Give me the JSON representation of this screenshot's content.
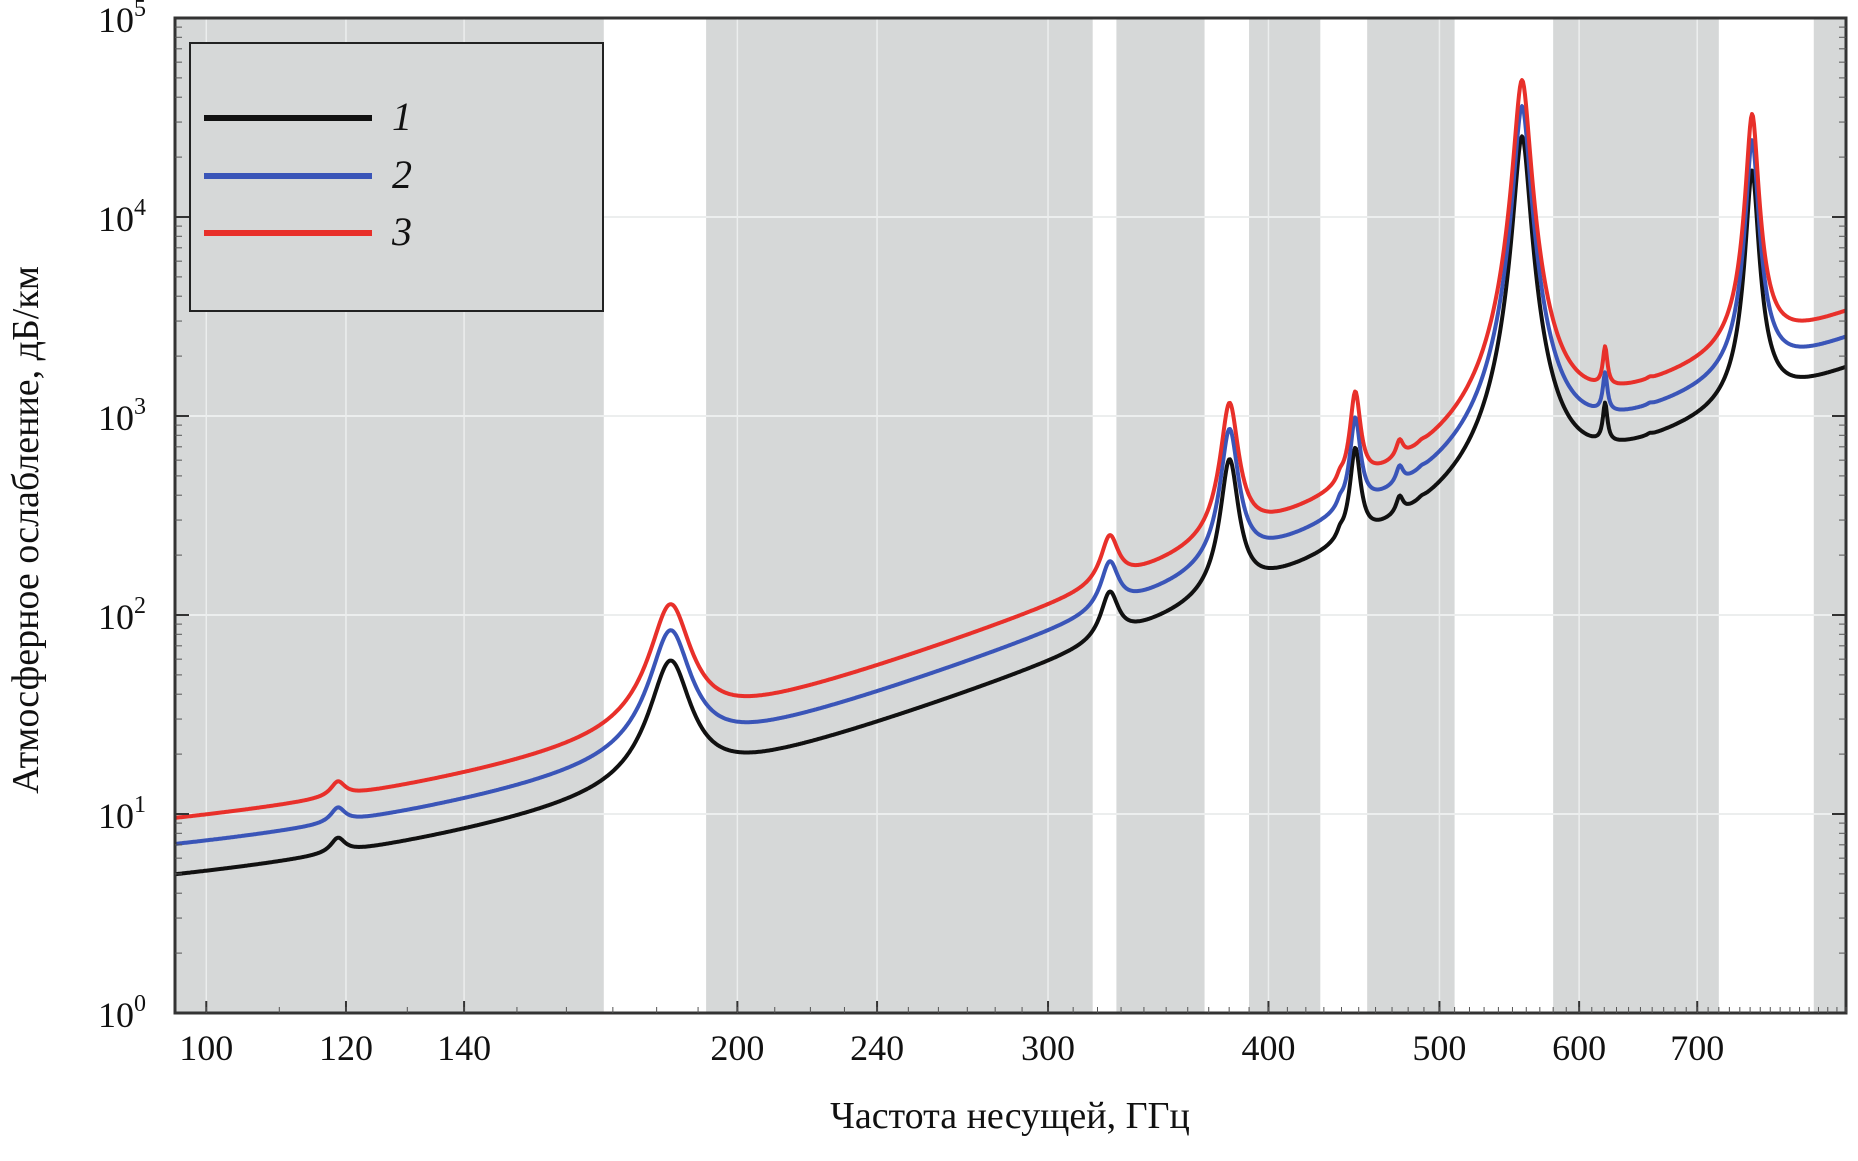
{
  "chart_data": {
    "type": "line",
    "title": "",
    "xlabel": "Частота несущей, ГГц",
    "ylabel": "Атмосферное ослабление, дБ/км",
    "x_scale": "log",
    "y_scale": "log",
    "xlim": [
      96,
      850
    ],
    "ylim": [
      1,
      100000
    ],
    "x_ticks": [
      {
        "value": 100,
        "label": "100"
      },
      {
        "value": 120,
        "label": "120"
      },
      {
        "value": 140,
        "label": "140"
      },
      {
        "value": 200,
        "label": "200"
      },
      {
        "value": 240,
        "label": "240"
      },
      {
        "value": 300,
        "label": "300"
      },
      {
        "value": 400,
        "label": "400"
      },
      {
        "value": 500,
        "label": "500"
      },
      {
        "value": 600,
        "label": "600"
      },
      {
        "value": 700,
        "label": "700"
      }
    ],
    "y_ticks": [
      {
        "value": 1,
        "base": "10",
        "exp": "0"
      },
      {
        "value": 10,
        "base": "10",
        "exp": "1"
      },
      {
        "value": 100,
        "base": "10",
        "exp": "2"
      },
      {
        "value": 1000,
        "base": "10",
        "exp": "3"
      },
      {
        "value": 10000,
        "base": "10",
        "exp": "4"
      },
      {
        "value": 100000,
        "base": "10",
        "exp": "5"
      }
    ],
    "grid": true,
    "legend_position": "top-left",
    "shaded_bands": [
      [
        96,
        168
      ],
      [
        192,
        318
      ],
      [
        328,
        368
      ],
      [
        390,
        428
      ],
      [
        455,
        510
      ],
      [
        580,
        720
      ],
      [
        815,
        850
      ]
    ],
    "colors": {
      "band": "#d6d8d8",
      "grid": "#eceeee",
      "frame": "#333333"
    },
    "series": [
      {
        "name": "1",
        "color": "#111111",
        "scale": 1.0
      },
      {
        "name": "2",
        "color": "#3a55b8",
        "scale": 1.42
      },
      {
        "name": "3",
        "color": "#e8302a",
        "scale": 1.92
      }
    ],
    "base_curve": {
      "background": {
        "a": 0.96,
        "b": 3.5
      },
      "peaks": [
        {
          "f": 118.75,
          "amp": 1.2,
          "w": 1.3
        },
        {
          "f": 183.3,
          "amp": 45,
          "w": 4.5
        },
        {
          "f": 325.2,
          "amp": 55,
          "w": 4.0
        },
        {
          "f": 380.2,
          "amp": 480,
          "w": 4.0
        },
        {
          "f": 448.0,
          "amp": 450,
          "w": 3.0
        },
        {
          "f": 439.2,
          "amp": 18,
          "w": 2.0
        },
        {
          "f": 474.7,
          "amp": 70,
          "w": 2.5
        },
        {
          "f": 488.5,
          "amp": 8,
          "w": 2.5
        },
        {
          "f": 556.9,
          "amp": 25000,
          "w": 5.0
        },
        {
          "f": 620.7,
          "amp": 420,
          "w": 2.0
        },
        {
          "f": 658.0,
          "amp": 14,
          "w": 2.5
        },
        {
          "f": 752.0,
          "amp": 16000,
          "w": 5.0
        }
      ]
    }
  }
}
